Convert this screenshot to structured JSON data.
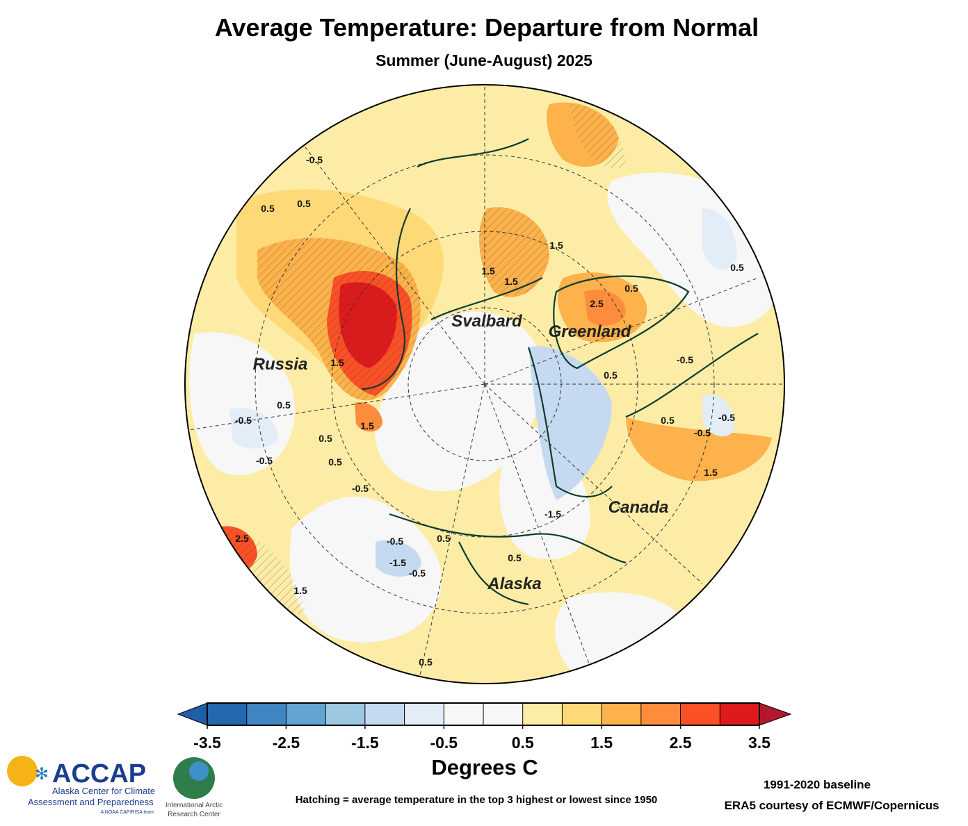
{
  "header": {
    "title": "Average Temperature: Departure from Normal",
    "subtitle": "Summer (June-August) 2025"
  },
  "map": {
    "region_labels": [
      "Svalbard",
      "Greenland",
      "Russia",
      "Canada",
      "Alaska"
    ],
    "contour_labels": [
      "-0.5",
      "0.5",
      "0.5",
      "-0.5",
      "0.5",
      "-0.5",
      "0.5",
      "0.5",
      "1.5",
      "1.5",
      "1.5",
      "1.5",
      "2.5",
      "0.5",
      "0.5",
      "-0.5",
      "-0.5",
      "0.5",
      "-0.5",
      "1.5",
      "2.5",
      "-0.5",
      "-1.5",
      "0.5",
      "0.5",
      "-0.5",
      "-1.5",
      "-0.5",
      "1.5",
      "0.5",
      "0.5",
      "1.5"
    ]
  },
  "colorbar": {
    "bounds": [
      -3.5,
      -3,
      -2.5,
      -2,
      -1.5,
      -1,
      -0.5,
      0,
      0.5,
      1,
      1.5,
      2,
      2.5,
      3,
      3.5
    ],
    "colors": [
      "#2468ae",
      "#3f86c2",
      "#64a4d2",
      "#9cc8e1",
      "#c5daf0",
      "#e2edf7",
      "#f7f7f7",
      "#f7f7f7",
      "#fdeca6",
      "#fed978",
      "#fdb24c",
      "#fd8d3c",
      "#fb5126",
      "#de1b1c"
    ],
    "extend_colors": [
      "#1f5fa8",
      "#b2182b"
    ],
    "ticks": [
      -3.5,
      -2.5,
      -1.5,
      -0.5,
      0.5,
      1.5,
      2.5,
      3.5
    ],
    "label": "Degrees C"
  },
  "footer": {
    "logo_name": "ACCAP",
    "logo_line1": "Alaska Center for Climate",
    "logo_line2": "Assessment and Preparedness",
    "logo_line3": "A NOAA CAP/RISA team",
    "iarc_line1": "International Arctic",
    "iarc_line2": "Research Center",
    "hatching_note": "Hatching = average temperature in the top 3 highest or lowest since 1950",
    "baseline": "1991-2020 baseline",
    "source": "ERA5 courtesy of ECMWF/Copernicus"
  }
}
